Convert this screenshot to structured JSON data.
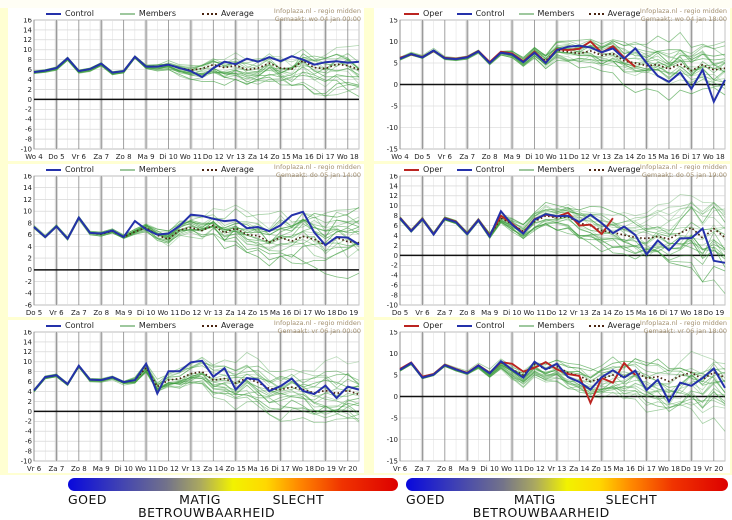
{
  "colors": {
    "control": "#2431aa",
    "oper": "#bb2420",
    "members": "#3f9e3f",
    "members_legend": "#9ec89e",
    "average": "#4a2410",
    "grid": "#cfcfcf",
    "zero": "#111111",
    "page_gutter": "#ffffd2"
  },
  "cropped_top": {
    "left": "Za 14        Zo 15        Ma 16        Di 17        Wo 18",
    "right": "Vr 13       Za 14       Zo 15       Ma 16       Di 17       Wo 18"
  },
  "reliability": {
    "good": "GOED",
    "moderate": "MATIG",
    "bad": "SLECHT",
    "title": "BETROUWBAARHEID"
  },
  "chart_data": [
    {
      "id": "top-left",
      "type": "line",
      "source": "Infoplaza.nl - regio midden",
      "made": "Gemaakt: wo 04 jan 00:00",
      "legend": [
        {
          "label": "Control",
          "color": "#2431aa",
          "style": "solid"
        },
        {
          "label": "Members",
          "color": "#9ec89e",
          "style": "solid"
        },
        {
          "label": "Average",
          "color": "#4a2410",
          "style": "dotted"
        }
      ],
      "xlabel": "",
      "ylabel": "",
      "ylim": [
        -10,
        16
      ],
      "ytick": 2,
      "days": [
        "Wo 4",
        "Do 5",
        "Vr 6",
        "Za 7",
        "Zo 8",
        "Ma 9",
        "Di 10",
        "Wo 11",
        "Do 12",
        "Vr 13",
        "Za 14",
        "Zo 15",
        "Ma 16",
        "Di 17",
        "Wo 18"
      ],
      "points_per_day": 2,
      "series": {
        "control": [
          5.5,
          5.8,
          6.3,
          8.3,
          5.7,
          6.1,
          7.2,
          5.4,
          5.7,
          8.6,
          6.6,
          6.6,
          7.0,
          6.3,
          5.7,
          4.5,
          6.3,
          7.6,
          7.1,
          8.2,
          7.6,
          8.5,
          7.7,
          8.7,
          8.0,
          7.0,
          7.5,
          7.7,
          7.4,
          7.6
        ],
        "average": [
          5.5,
          5.8,
          6.3,
          8.3,
          5.7,
          6.1,
          7.2,
          5.4,
          5.7,
          8.6,
          6.6,
          6.6,
          7.0,
          6.3,
          5.9,
          6.2,
          7.0,
          6.4,
          6.8,
          6.0,
          6.3,
          7.3,
          6.3,
          6.1,
          7.8,
          6.4,
          6.2,
          7.1,
          6.8,
          6.0
        ]
      },
      "members": {
        "count": 20,
        "seed": 11,
        "tight_until": 0.34,
        "spread_max": 4.8
      }
    },
    {
      "id": "top-right",
      "type": "line",
      "source": "Infoplaza.nl - regio midden",
      "made": "Gemaakt: wo 04 jan 18:00",
      "legend": [
        {
          "label": "Oper",
          "color": "#bb2420",
          "style": "solid"
        },
        {
          "label": "Control",
          "color": "#2431aa",
          "style": "solid"
        },
        {
          "label": "Members",
          "color": "#9ec89e",
          "style": "solid"
        },
        {
          "label": "Average",
          "color": "#4a2410",
          "style": "dotted"
        }
      ],
      "xlabel": "",
      "ylabel": "",
      "ylim": [
        -15,
        15
      ],
      "ytick": 5,
      "days": [
        "Wo 4",
        "Do 5",
        "Vr 6",
        "Za 7",
        "Zo 8",
        "Ma 9",
        "Di 10",
        "Wo 11",
        "Do 12",
        "Vr 13",
        "Za 14",
        "Zo 15",
        "Ma 16",
        "Di 17",
        "Wo 18"
      ],
      "points_per_day": 2,
      "series": {
        "oper": [
          6.2,
          7.0,
          6.4,
          7.8,
          6.2,
          6.0,
          6.4,
          7.8,
          5.2,
          7.6,
          7.2,
          5.4,
          7.6,
          5.1,
          8.2,
          8.0,
          8.3,
          10.0,
          7.4,
          8.9,
          6.3,
          4.1
        ],
        "control": [
          6.0,
          7.1,
          6.3,
          7.9,
          6.1,
          5.9,
          6.3,
          7.7,
          5.0,
          7.4,
          7.0,
          5.2,
          7.4,
          5.0,
          8.0,
          8.8,
          9.0,
          8.6,
          7.5,
          8.4,
          6.0,
          8.4,
          5.0,
          2.0,
          0.6,
          2.8,
          -1.0,
          3.4,
          -4.0,
          1.1
        ],
        "average": [
          6.0,
          7.1,
          6.3,
          7.9,
          6.1,
          5.9,
          6.3,
          7.7,
          5.0,
          7.4,
          7.0,
          5.2,
          7.4,
          5.5,
          8.0,
          7.6,
          7.2,
          7.8,
          6.8,
          7.2,
          5.5,
          5.0,
          4.4,
          4.6,
          3.6,
          4.8,
          3.2,
          4.6,
          3.4,
          3.8
        ]
      },
      "members": {
        "count": 22,
        "seed": 22,
        "tight_until": 0.3,
        "spread_max": 5.8
      }
    },
    {
      "id": "middle-left",
      "type": "line",
      "source": "Infoplaza.nl - regio midden",
      "made": "Gemaakt: do 05 jan 14:00",
      "legend": [
        {
          "label": "Control",
          "color": "#2431aa",
          "style": "solid"
        },
        {
          "label": "Members",
          "color": "#9ec89e",
          "style": "solid"
        },
        {
          "label": "Average",
          "color": "#4a2410",
          "style": "dotted"
        }
      ],
      "xlabel": "",
      "ylabel": "",
      "ylim": [
        -6,
        16
      ],
      "ytick": 2,
      "days": [
        "Do 5",
        "Vr 6",
        "Za 7",
        "Zo 8",
        "Ma 9",
        "Di 10",
        "Wo 11",
        "Do 12",
        "Vr 13",
        "Za 14",
        "Zo 15",
        "Ma 16",
        "Di 17",
        "Wo 18",
        "Do 19"
      ],
      "points_per_day": 2,
      "series": {
        "control": [
          7.3,
          5.6,
          7.4,
          5.3,
          8.9,
          6.3,
          6.2,
          6.7,
          5.6,
          8.3,
          6.9,
          6.0,
          6.2,
          7.5,
          9.4,
          9.2,
          8.7,
          8.3,
          8.5,
          7.1,
          7.3,
          6.6,
          7.6,
          9.3,
          9.9,
          6.4,
          4.2,
          5.6,
          5.5,
          4.3
        ],
        "average": [
          7.3,
          5.6,
          7.4,
          5.3,
          8.9,
          6.3,
          6.1,
          6.6,
          5.6,
          6.5,
          7.2,
          5.9,
          5.2,
          6.8,
          7.2,
          6.7,
          7.6,
          6.3,
          7.1,
          6.0,
          5.8,
          4.7,
          5.5,
          4.9,
          5.7,
          5.2,
          4.2,
          5.5,
          4.8,
          4.6
        ]
      },
      "members": {
        "count": 20,
        "seed": 33,
        "tight_until": 0.3,
        "spread_max": 5.2
      }
    },
    {
      "id": "middle-right",
      "type": "line",
      "source": "Infoplaza.nl - regio midden",
      "made": "Gemaakt: do 05 jan 19:00",
      "legend": [
        {
          "label": "Oper",
          "color": "#bb2420",
          "style": "solid"
        },
        {
          "label": "Control",
          "color": "#2431aa",
          "style": "solid"
        },
        {
          "label": "Members",
          "color": "#9ec89e",
          "style": "solid"
        },
        {
          "label": "Average",
          "color": "#4a2410",
          "style": "dotted"
        }
      ],
      "xlabel": "",
      "ylabel": "",
      "ylim": [
        -10,
        16
      ],
      "ytick": 2,
      "days": [
        "Do 5",
        "Vr 6",
        "Za 7",
        "Zo 8",
        "Ma 9",
        "Di 10",
        "Wo 11",
        "Do 12",
        "Vr 13",
        "Za 14",
        "Zo 15",
        "Ma 16",
        "Di 17",
        "Wo 18",
        "Do 19"
      ],
      "points_per_day": 2,
      "series": {
        "oper": [
          7.6,
          5.0,
          7.4,
          4.3,
          7.5,
          6.8,
          4.4,
          7.2,
          4.0,
          8.0,
          6.4,
          4.5,
          7.3,
          8.2,
          7.8,
          8.6,
          6.0,
          6.2,
          4.3,
          7.5
        ],
        "control": [
          7.5,
          4.9,
          7.3,
          4.2,
          7.4,
          6.7,
          4.3,
          7.1,
          3.8,
          8.9,
          6.2,
          4.4,
          7.2,
          8.3,
          7.9,
          8.0,
          6.7,
          8.2,
          6.5,
          4.5,
          5.8,
          4.1,
          0.2,
          3.0,
          1.0,
          3.4,
          3.5,
          5.4,
          -1.1,
          -1.5
        ],
        "average": [
          7.5,
          4.9,
          7.3,
          4.3,
          7.4,
          6.7,
          4.4,
          7.1,
          4.0,
          7.5,
          6.3,
          4.8,
          6.8,
          8.0,
          7.6,
          7.8,
          6.5,
          6.0,
          5.0,
          4.6,
          4.1,
          3.6,
          3.4,
          3.8,
          3.3,
          4.5,
          5.6,
          3.5,
          5.4,
          3.6
        ]
      },
      "members": {
        "count": 22,
        "seed": 44,
        "tight_until": 0.26,
        "spread_max": 5.6
      }
    },
    {
      "id": "bottom-left",
      "type": "line",
      "source": "Infoplaza.nl - regio midden",
      "made": "Gemaakt: vr 06 jan 00:00",
      "legend": [
        {
          "label": "Control",
          "color": "#2431aa",
          "style": "solid"
        },
        {
          "label": "Members",
          "color": "#9ec89e",
          "style": "solid"
        },
        {
          "label": "Average",
          "color": "#4a2410",
          "style": "dotted"
        }
      ],
      "xlabel": "",
      "ylabel": "",
      "ylim": [
        -10,
        16
      ],
      "ytick": 2,
      "days": [
        "Vr 6",
        "Za 7",
        "Zo 8",
        "Ma 9",
        "Di 10",
        "Wo 11",
        "Do 12",
        "Vr 13",
        "Za 14",
        "Zo 15",
        "Ma 16",
        "Di 17",
        "Wo 18",
        "Do 19",
        "Vr 20"
      ],
      "points_per_day": 2,
      "series": {
        "control": [
          4.2,
          6.9,
          7.3,
          5.5,
          9.2,
          6.4,
          6.3,
          6.9,
          5.9,
          6.3,
          9.6,
          3.6,
          8.1,
          8.1,
          9.9,
          10.2,
          7.0,
          8.7,
          4.4,
          6.7,
          6.4,
          4.1,
          5.1,
          6.6,
          4.1,
          3.5,
          5.2,
          2.7,
          5.0,
          4.4
        ],
        "average": [
          4.2,
          6.9,
          7.3,
          5.5,
          9.2,
          6.4,
          6.3,
          6.9,
          5.9,
          6.3,
          8.8,
          5.0,
          6.3,
          6.6,
          7.6,
          8.0,
          6.3,
          6.6,
          5.7,
          6.7,
          5.8,
          4.6,
          4.4,
          4.9,
          4.4,
          3.7,
          4.2,
          3.6,
          4.2,
          3.4
        ]
      },
      "members": {
        "count": 20,
        "seed": 55,
        "tight_until": 0.28,
        "spread_max": 5.2
      }
    },
    {
      "id": "bottom-right",
      "type": "line",
      "source": "Infoplaza.nl - regio midden",
      "made": "Gemaakt: vr 06 jan 18:00",
      "legend": [
        {
          "label": "Oper",
          "color": "#bb2420",
          "style": "solid"
        },
        {
          "label": "Control",
          "color": "#2431aa",
          "style": "solid"
        },
        {
          "label": "Members",
          "color": "#9ec89e",
          "style": "solid"
        },
        {
          "label": "Average",
          "color": "#4a2410",
          "style": "dotted"
        }
      ],
      "xlabel": "",
      "ylabel": "",
      "ylim": [
        -15,
        15
      ],
      "ytick": 5,
      "days": [
        "Vr 6",
        "Za 7",
        "Zo 8",
        "Ma 9",
        "Di 10",
        "Wo 11",
        "Do 12",
        "Vr 13",
        "Za 14",
        "Zo 15",
        "Ma 16",
        "Di 17",
        "Wo 18",
        "Do 19",
        "Vr 20"
      ],
      "points_per_day": 2,
      "series": {
        "oper": [
          6.4,
          7.9,
          4.6,
          5.2,
          7.4,
          6.4,
          5.5,
          7.3,
          5.5,
          8.0,
          7.6,
          5.8,
          6.7,
          8.0,
          6.3,
          5.2,
          4.8,
          -1.5,
          4.3,
          3.2,
          7.8,
          5.0
        ],
        "control": [
          6.2,
          7.8,
          4.4,
          5.1,
          7.3,
          6.3,
          5.4,
          7.2,
          5.4,
          8.2,
          6.2,
          4.4,
          8.1,
          6.3,
          7.6,
          4.5,
          3.4,
          1.6,
          4.5,
          6.1,
          4.4,
          6.0,
          1.5,
          3.9,
          -1.2,
          3.2,
          2.5,
          4.3,
          6.5,
          2.0
        ],
        "average": [
          6.2,
          7.8,
          4.5,
          5.2,
          7.3,
          6.3,
          5.5,
          7.2,
          5.5,
          8.0,
          6.3,
          5.0,
          7.5,
          6.4,
          7.0,
          5.5,
          4.8,
          3.5,
          4.2,
          5.0,
          4.6,
          5.8,
          4.2,
          4.6,
          3.5,
          4.8,
          5.6,
          4.0,
          5.6,
          4.4
        ]
      },
      "members": {
        "count": 22,
        "seed": 66,
        "tight_until": 0.22,
        "spread_max": 6.2
      }
    }
  ]
}
